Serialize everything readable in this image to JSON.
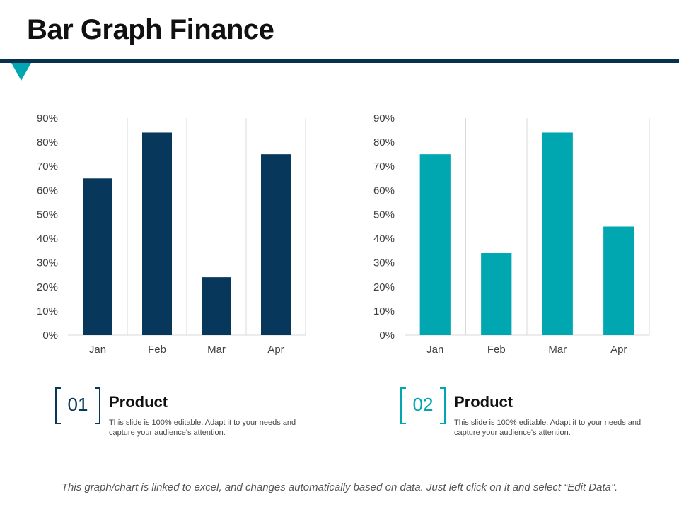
{
  "slide": {
    "title": "Bar Graph Finance"
  },
  "chart_data": [
    {
      "type": "bar",
      "categories": [
        "Jan",
        "Feb",
        "Mar",
        "Apr"
      ],
      "values": [
        65,
        84,
        24,
        75
      ],
      "ylim": [
        0,
        90
      ],
      "yticks": [
        "0%",
        "10%",
        "20%",
        "30%",
        "40%",
        "50%",
        "60%",
        "70%",
        "80%",
        "90%"
      ],
      "color": "#07375a",
      "grid": "vertical"
    },
    {
      "type": "bar",
      "categories": [
        "Jan",
        "Feb",
        "Mar",
        "Apr"
      ],
      "values": [
        75,
        34,
        84,
        45
      ],
      "ylim": [
        0,
        90
      ],
      "yticks": [
        "0%",
        "10%",
        "20%",
        "30%",
        "40%",
        "50%",
        "60%",
        "70%",
        "80%",
        "90%"
      ],
      "color": "#00a7b0",
      "grid": "vertical"
    }
  ],
  "cards": [
    {
      "number": "01",
      "title": "Product",
      "text": "This slide is 100% editable. Adapt it to your needs and capture your audience's attention.",
      "color": "#07375a"
    },
    {
      "number": "02",
      "title": "Product",
      "text": "This slide is 100% editable. Adapt it to your needs and capture your audience's attention.",
      "color": "#00a7b0"
    }
  ],
  "footer": {
    "note": "This graph/chart is linked to excel, and changes automatically based on data. Just left click on it and select “Edit Data”."
  }
}
